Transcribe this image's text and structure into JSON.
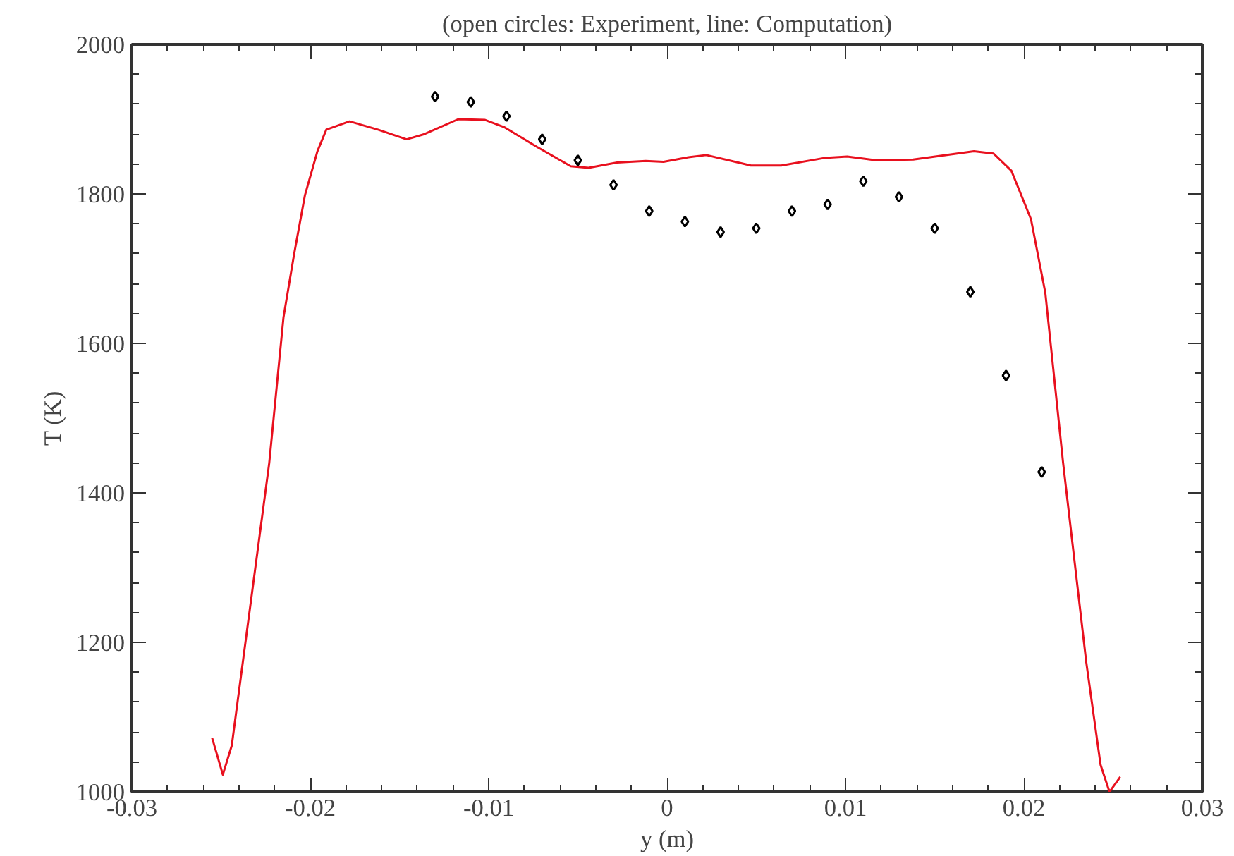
{
  "chart_data": {
    "type": "line",
    "title": "(open circles: Experiment, line: Computation)",
    "xlabel": "y (m)",
    "ylabel": "T (K)",
    "xlim": [
      -0.03,
      0.03
    ],
    "xticks": [
      -0.03,
      -0.02,
      -0.01,
      0,
      0.01,
      0.02,
      0.03
    ],
    "ylim": [
      1000,
      2000
    ],
    "yticks": [
      1000,
      1200,
      1400,
      1600,
      1800,
      2000
    ],
    "grid": false,
    "series": [
      {
        "type": "scatter",
        "marker": "diamond",
        "color": "#000000",
        "x": [
          -0.013,
          -0.011,
          -0.009,
          -0.007,
          -0.005,
          -0.003,
          -0.001,
          0.001,
          0.003,
          0.005,
          0.007,
          0.009,
          0.011,
          0.013,
          0.015,
          0.017,
          0.019,
          0.021
        ],
        "values": [
          1930,
          1923,
          1904,
          1873,
          1845,
          1812,
          1777,
          1763,
          1749,
          1754,
          1777,
          1786,
          1817,
          1796,
          1754,
          1669,
          1557,
          1428
        ]
      },
      {
        "marker": "none",
        "line_style": "solid",
        "color": "#e8101e",
        "x": [
          -0.0255,
          -0.0249,
          -0.0244,
          -0.0223,
          -0.0215,
          -0.0209,
          -0.0203,
          -0.0196,
          -0.0191,
          -0.0178,
          -0.0162,
          -0.0146,
          -0.0136,
          -0.0117,
          -0.0102,
          -0.0091,
          -0.0073,
          -0.0054,
          -0.0044,
          -0.0028,
          -0.0012,
          -0.0002,
          0.0012,
          0.0022,
          0.0047,
          0.0064,
          0.0088,
          0.0101,
          0.0117,
          0.0138,
          0.0172,
          0.0183,
          0.0193,
          0.0204,
          0.0212,
          0.0222,
          0.0235,
          0.0243,
          0.0248,
          0.0254
        ],
        "values": [
          1072,
          1023,
          1062,
          1440,
          1635,
          1720,
          1798,
          1857,
          1886,
          1897,
          1886,
          1873,
          1880,
          1900,
          1899,
          1889,
          1863,
          1837,
          1835,
          1842,
          1844,
          1843,
          1849,
          1852,
          1838,
          1838,
          1848,
          1850,
          1845,
          1846,
          1857,
          1854,
          1831,
          1766,
          1668,
          1440,
          1173,
          1036,
          1000,
          1020
        ]
      }
    ]
  }
}
